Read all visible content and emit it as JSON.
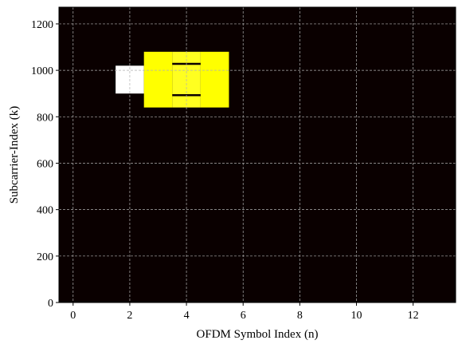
{
  "chart_data": {
    "type": "heatmap",
    "title": "",
    "xlabel": "OFDM Symbol Index (n)",
    "ylabel": "Subcarrier-Index (k)",
    "xlim": [
      -0.5,
      13.5
    ],
    "ylim": [
      0,
      1272
    ],
    "x_ticks": [
      0,
      2,
      4,
      6,
      8,
      10,
      12
    ],
    "y_ticks": [
      0,
      200,
      400,
      600,
      800,
      1000,
      1200
    ],
    "grid": true,
    "background_value_color": "#0a0000",
    "cells": [
      {
        "n_start": 1.5,
        "n_end": 2.5,
        "k_start": 900,
        "k_end": 1020,
        "color": "#ffffff"
      },
      {
        "n_start": 2.5,
        "n_end": 3.5,
        "k_start": 840,
        "k_end": 1080,
        "color": "#ffff00"
      },
      {
        "n_start": 3.5,
        "n_end": 4.5,
        "k_start": 840,
        "k_end": 1080,
        "color": "#ffff20"
      },
      {
        "n_start": 4.5,
        "n_end": 5.5,
        "k_start": 840,
        "k_end": 1080,
        "color": "#ffff00"
      }
    ],
    "lines": [
      {
        "n_start": 3.5,
        "n_end": 4.5,
        "k": 1028,
        "color": "#0a0000"
      },
      {
        "n_start": 3.5,
        "n_end": 4.5,
        "k": 893,
        "color": "#0a0000"
      }
    ]
  }
}
